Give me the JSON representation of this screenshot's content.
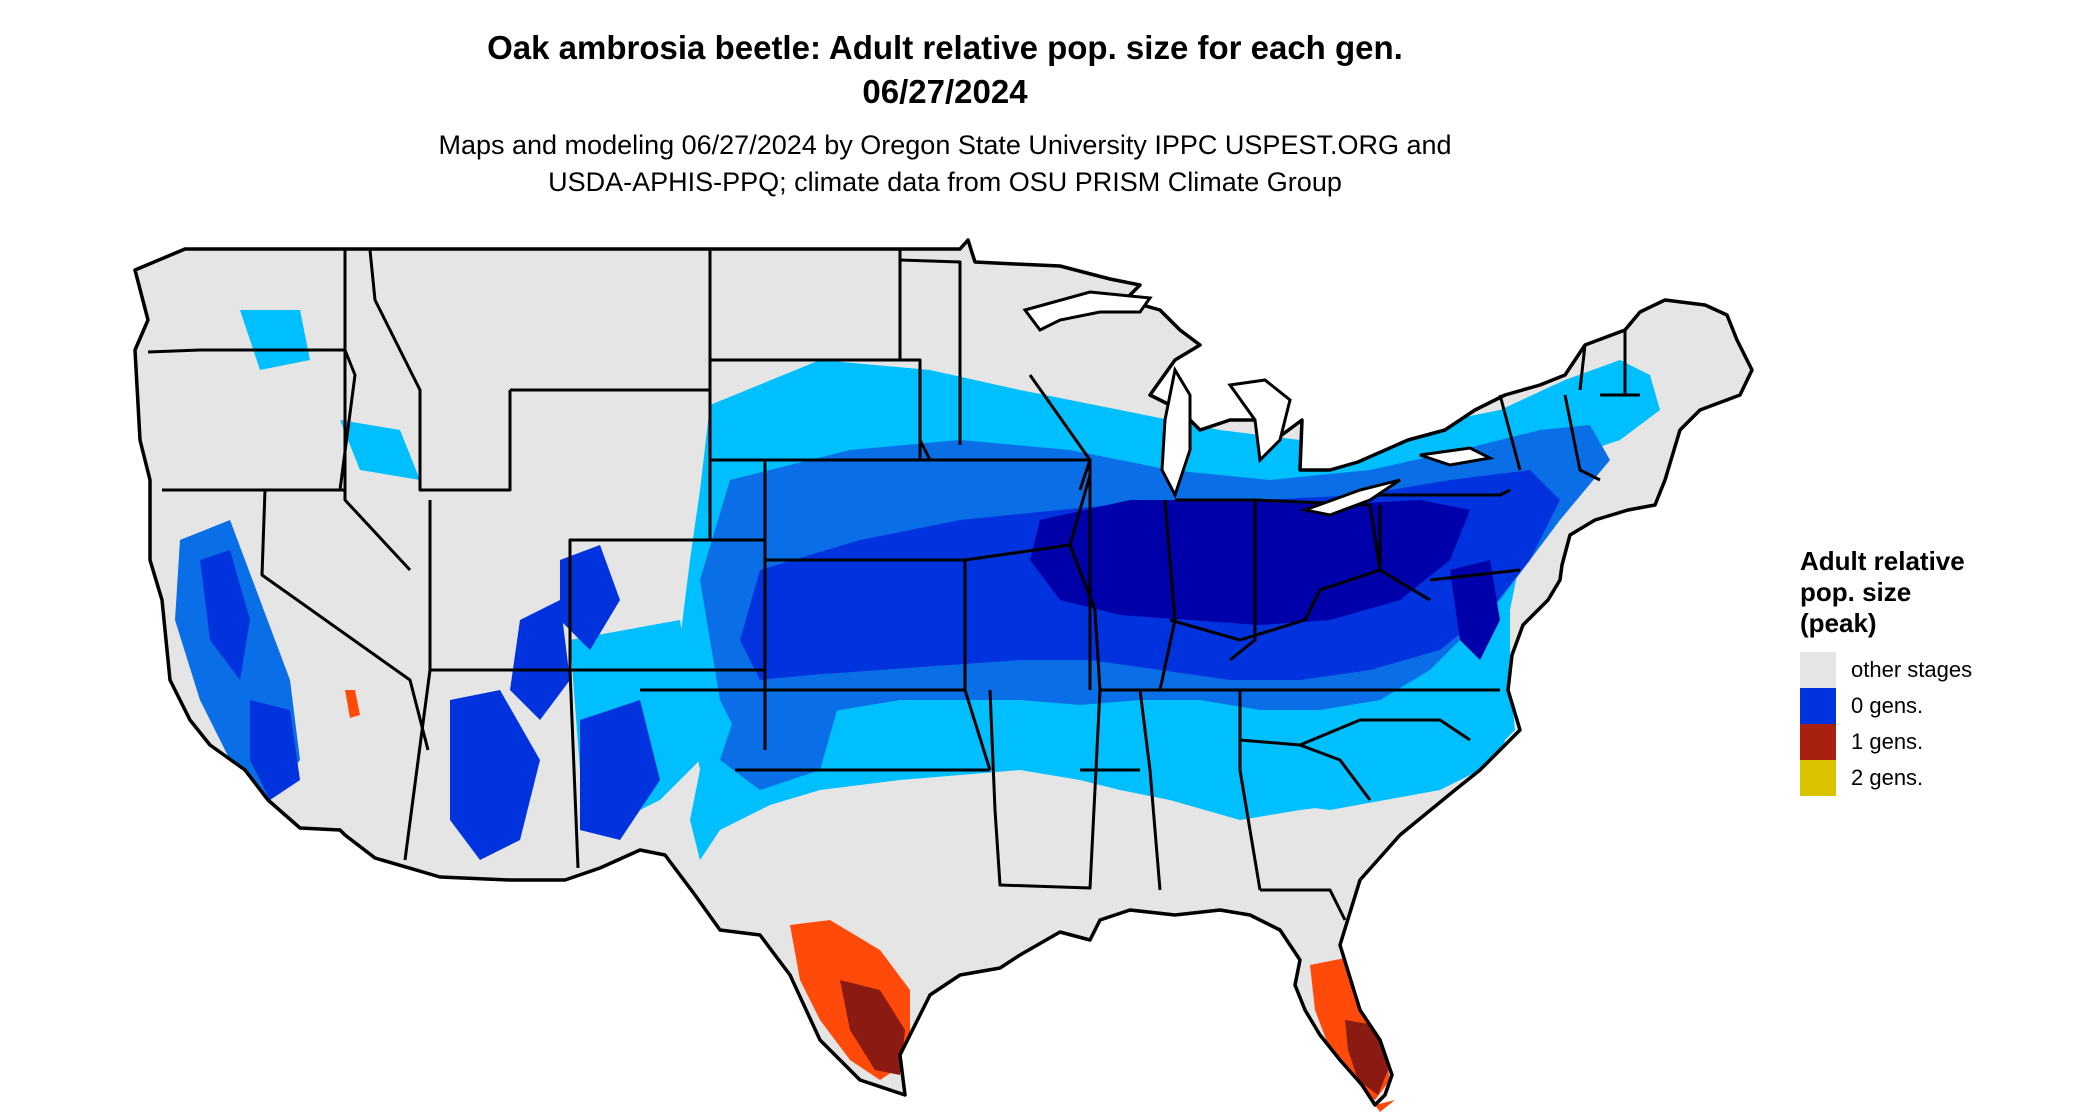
{
  "header": {
    "title_line1": "Oak ambrosia beetle: Adult relative pop. size for each gen.",
    "title_line2": "06/27/2024",
    "subtitle_line1": "Maps and modeling 06/27/2024 by Oregon State University IPPC USPEST.ORG and",
    "subtitle_line2": "USDA-APHIS-PPQ; climate data from OSU PRISM Climate Group"
  },
  "map": {
    "region": "Contiguous United States",
    "land_color": "#e5e5e5",
    "border_color": "#000000",
    "palette": {
      "light_blue": "#00bfff",
      "mid_blue": "#0a6fe6",
      "blue": "#0033dd",
      "dark_blue": "#0000aa",
      "orange": "#ff4a0a",
      "dark_red": "#8b1a12"
    }
  },
  "legend": {
    "title_line1": "Adult relative",
    "title_line2": "pop. size",
    "title_line3": "(peak)",
    "items": [
      {
        "label": "other stages",
        "color": "#e5e5e5"
      },
      {
        "label": "0 gens.",
        "color": "#0033dd"
      },
      {
        "label": "1 gens.",
        "color": "#a82010"
      },
      {
        "label": "2 gens.",
        "color": "#d9c200"
      }
    ]
  }
}
